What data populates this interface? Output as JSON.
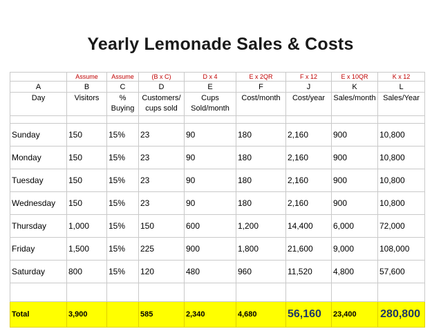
{
  "title": "Yearly Lemonade Sales & Costs",
  "formulas": [
    "",
    "Assume",
    "Assume",
    "(B x C)",
    "D x 4",
    "E x 2QR",
    "F x 12",
    "E x 10QR",
    "K x 12"
  ],
  "letters": [
    "A",
    "B",
    "C",
    "D",
    "E",
    "F",
    "J",
    "K",
    "L"
  ],
  "headers": [
    "Day",
    "Visitors",
    "% Buying",
    "Customers/ cups sold",
    "Cups Sold/month",
    "Cost/month",
    "Cost/year",
    "Sales/month",
    "Sales/Year"
  ],
  "rows": [
    [
      "Sunday",
      "150",
      "15%",
      "23",
      "90",
      "180",
      "2,160",
      "900",
      "10,800"
    ],
    [
      "Monday",
      "150",
      "15%",
      "23",
      "90",
      "180",
      "2,160",
      "900",
      "10,800"
    ],
    [
      "Tuesday",
      "150",
      "15%",
      "23",
      "90",
      "180",
      "2,160",
      "900",
      "10,800"
    ],
    [
      "Wednesday",
      "150",
      "15%",
      "23",
      "90",
      "180",
      "2,160",
      "900",
      "10,800"
    ],
    [
      "Thursday",
      "1,000",
      "15%",
      "150",
      "600",
      "1,200",
      "14,400",
      "6,000",
      "72,000"
    ],
    [
      "Friday",
      "1,500",
      "15%",
      "225",
      "900",
      "1,800",
      "21,600",
      "9,000",
      "108,000"
    ],
    [
      "Saturday",
      "800",
      "15%",
      "120",
      "480",
      "960",
      "11,520",
      "4,800",
      "57,600"
    ]
  ],
  "total": [
    "Total",
    "3,900",
    "",
    "585",
    "2,340",
    "4,680",
    "56,160",
    "23,400",
    "280,800"
  ],
  "colors": {
    "total_bg": "#ffff00",
    "formula_text": "#c00000",
    "big_total_text": "#1f3864"
  }
}
